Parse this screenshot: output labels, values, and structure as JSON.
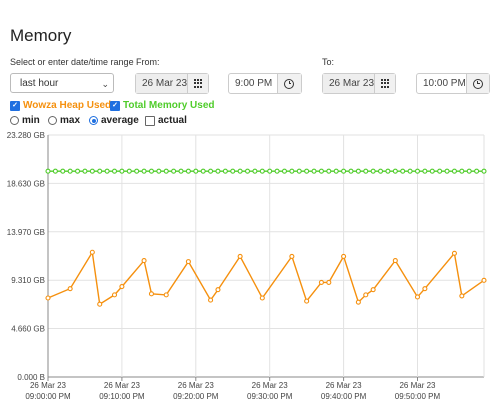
{
  "page": {
    "title": "Memory"
  },
  "range": {
    "label": "Select or enter date/time range",
    "preset": "last hour",
    "from_label": "From:",
    "from_date": "26 Mar 23",
    "from_time": "9:00 PM",
    "to_label": "To:",
    "to_date": "26 Mar 23",
    "to_time": "10:00 PM"
  },
  "series_toggles": [
    {
      "label": "Wowza Heap Used",
      "checked": true,
      "color": "#f5900e"
    },
    {
      "label": "Total Memory Used",
      "checked": true,
      "color": "#4fcc2a"
    }
  ],
  "modes": [
    {
      "label": "min",
      "selected": false
    },
    {
      "label": "max",
      "selected": false
    },
    {
      "label": "average",
      "selected": true
    },
    {
      "label": "actual",
      "checkbox": true,
      "checked": false
    }
  ],
  "icons": {
    "date_button": "calendar-grid-icon",
    "time_button": "clock-icon"
  },
  "chart_data": {
    "type": "line",
    "x_min_minutes": 0,
    "x_max_minutes": 59,
    "ylim": [
      0,
      23.28
    ],
    "y_ticks": [
      "0.000 B",
      "4.660 GB",
      "9.310 GB",
      "13.970 GB",
      "18.630 GB",
      "23.280 GB"
    ],
    "y_tick_values": [
      0,
      4.66,
      9.31,
      13.97,
      18.63,
      23.28
    ],
    "x_tick_minutes": [
      0,
      10,
      20,
      30,
      40,
      50
    ],
    "x_ticks": [
      [
        "26 Mar 23",
        "09:00:00 PM"
      ],
      [
        "26 Mar 23",
        "09:10:00 PM"
      ],
      [
        "26 Mar 23",
        "09:20:00 PM"
      ],
      [
        "26 Mar 23",
        "09:30:00 PM"
      ],
      [
        "26 Mar 23",
        "09:40:00 PM"
      ],
      [
        "26 Mar 23",
        "09:50:00 PM"
      ]
    ],
    "grid": true,
    "series": [
      {
        "name": "Wowza Heap Used",
        "color": "#f5900e",
        "points": [
          [
            0,
            7.6
          ],
          [
            3,
            8.5
          ],
          [
            6,
            12.0
          ],
          [
            7,
            7.0
          ],
          [
            9,
            7.9
          ],
          [
            10,
            8.7
          ],
          [
            13,
            11.2
          ],
          [
            14,
            8.0
          ],
          [
            16,
            7.9
          ],
          [
            19,
            11.1
          ],
          [
            22,
            7.4
          ],
          [
            23,
            8.4
          ],
          [
            26,
            11.6
          ],
          [
            29,
            7.6
          ],
          [
            33,
            11.6
          ],
          [
            35,
            7.3
          ],
          [
            37,
            9.1
          ],
          [
            38,
            9.1
          ],
          [
            40,
            11.6
          ],
          [
            42,
            7.2
          ],
          [
            43,
            7.9
          ],
          [
            44,
            8.4
          ],
          [
            47,
            11.2
          ],
          [
            50,
            7.7
          ],
          [
            51,
            8.5
          ],
          [
            55,
            11.9
          ],
          [
            56,
            7.8
          ],
          [
            59,
            9.3
          ]
        ]
      },
      {
        "name": "Total Memory Used",
        "color": "#4fcc2a",
        "constant_value": 19.8,
        "sample_count": 60
      }
    ]
  }
}
